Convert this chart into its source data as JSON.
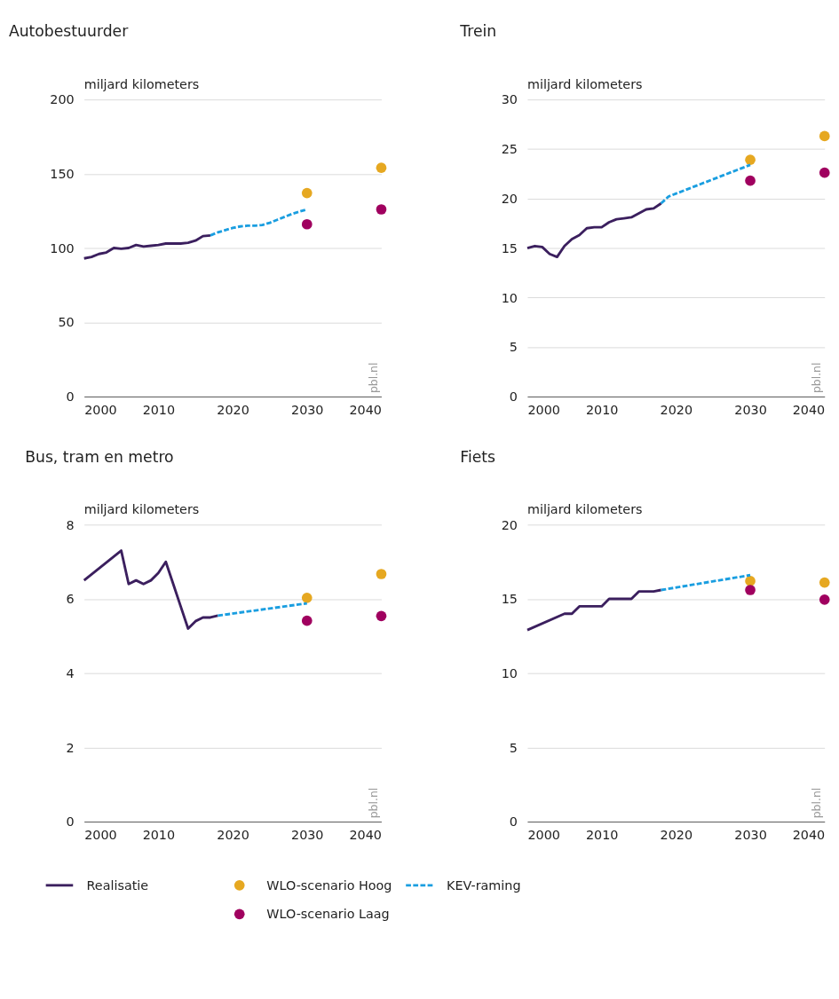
{
  "chart_data": [
    {
      "type": "line",
      "title": "Autobestuurder",
      "ylabel": "miljard kilometers",
      "xlim": [
        2000,
        2040
      ],
      "xticks": [
        2000,
        2010,
        2020,
        2030,
        2040
      ],
      "ylim": [
        0,
        200
      ],
      "yticks": [
        0,
        50,
        100,
        150,
        200
      ],
      "grid": "y",
      "annotations": [
        "pbl.nl"
      ],
      "legend": "bottom",
      "series": [
        {
          "name": "Realisatie",
          "type": "line",
          "color": "#3b1f5e",
          "line_style": "solid",
          "x": [
            2000,
            2001,
            2002,
            2003,
            2004,
            2005,
            2006,
            2007,
            2008,
            2009,
            2010,
            2011,
            2012,
            2013,
            2014,
            2015,
            2016,
            2017
          ],
          "values": [
            93,
            94,
            96,
            97,
            100,
            99.5,
            100,
            102,
            101,
            101.5,
            102,
            103,
            103,
            103,
            103.5,
            105,
            108,
            108.5
          ]
        },
        {
          "name": "WLO-scenario Hoog",
          "type": "scatter",
          "marker": "circle",
          "color": "#e6a821",
          "x": [
            2030,
            2040
          ],
          "values": [
            137,
            154
          ]
        },
        {
          "name": "KEV-raming",
          "type": "line",
          "color": "#1a9ee0",
          "line_style": "dashed",
          "x": [
            2017,
            2018,
            2019,
            2020,
            2021,
            2022,
            2023,
            2024,
            2025,
            2026,
            2027,
            2028,
            2029,
            2030
          ],
          "values": [
            108.5,
            110.5,
            112,
            113.5,
            114.5,
            115,
            115,
            115.5,
            117,
            119,
            121,
            123,
            124.5,
            126
          ]
        },
        {
          "name": "WLO-scenario Laag",
          "type": "scatter",
          "marker": "circle",
          "color": "#a0005f",
          "x": [
            2030,
            2040
          ],
          "values": [
            116,
            126
          ]
        }
      ]
    },
    {
      "type": "line",
      "title": "Trein",
      "ylabel": "miljard kilometers",
      "xlim": [
        2000,
        2040
      ],
      "xticks": [
        2000,
        2010,
        2020,
        2030,
        2040
      ],
      "ylim": [
        0,
        30
      ],
      "yticks": [
        0,
        5,
        10,
        15,
        20,
        25,
        30
      ],
      "grid": "y",
      "annotations": [
        "pbl.nl"
      ],
      "legend": "bottom",
      "series": [
        {
          "name": "Realisatie",
          "type": "line",
          "color": "#3b1f5e",
          "line_style": "solid",
          "x": [
            2000,
            2001,
            2002,
            2003,
            2004,
            2005,
            2006,
            2007,
            2008,
            2009,
            2010,
            2011,
            2012,
            2013,
            2014,
            2015,
            2016,
            2017,
            2018
          ],
          "values": [
            15.0,
            15.2,
            15.1,
            14.4,
            14.1,
            15.2,
            15.9,
            16.3,
            17.0,
            17.1,
            17.1,
            17.6,
            17.9,
            18.0,
            18.1,
            18.5,
            18.9,
            19.0,
            19.5
          ]
        },
        {
          "name": "WLO-scenario Hoog",
          "type": "scatter",
          "marker": "circle",
          "color": "#e6a821",
          "x": [
            2030,
            2040
          ],
          "values": [
            23.9,
            26.3
          ]
        },
        {
          "name": "KEV-raming",
          "type": "line",
          "color": "#1a9ee0",
          "line_style": "dashed",
          "x": [
            2018,
            2019,
            2030
          ],
          "values": [
            19.5,
            20.2,
            23.4
          ]
        },
        {
          "name": "WLO-scenario Laag",
          "type": "scatter",
          "marker": "circle",
          "color": "#a0005f",
          "x": [
            2030,
            2040
          ],
          "values": [
            21.8,
            22.6
          ]
        }
      ]
    },
    {
      "type": "line",
      "title": "Bus, tram en metro",
      "ylabel": "miljard kilometers",
      "xlim": [
        2000,
        2040
      ],
      "xticks": [
        2000,
        2010,
        2020,
        2030,
        2040
      ],
      "ylim": [
        0,
        8
      ],
      "yticks": [
        0,
        2,
        4,
        6,
        8
      ],
      "grid": "y",
      "annotations": [
        "pbl.nl"
      ],
      "legend": "bottom",
      "series": [
        {
          "name": "Realisatie",
          "type": "line",
          "color": "#3b1f5e",
          "line_style": "solid",
          "x": [
            2000,
            2005,
            2006,
            2007,
            2008,
            2009,
            2010,
            2011,
            2012,
            2013,
            2014,
            2015,
            2016,
            2017,
            2018
          ],
          "values": [
            6.5,
            7.3,
            6.4,
            6.5,
            6.4,
            6.5,
            6.7,
            7.0,
            6.4,
            5.8,
            5.2,
            5.4,
            5.5,
            5.5,
            5.55
          ]
        },
        {
          "name": "WLO-scenario Hoog",
          "type": "scatter",
          "marker": "circle",
          "color": "#e6a821",
          "x": [
            2030,
            2040
          ],
          "values": [
            6.03,
            6.67
          ]
        },
        {
          "name": "KEV-raming",
          "type": "line",
          "color": "#1a9ee0",
          "line_style": "dashed",
          "x": [
            2018,
            2030
          ],
          "values": [
            5.55,
            5.88
          ]
        },
        {
          "name": "WLO-scenario Laag",
          "type": "scatter",
          "marker": "circle",
          "color": "#a0005f",
          "x": [
            2030,
            2040
          ],
          "values": [
            5.41,
            5.54
          ]
        }
      ]
    },
    {
      "type": "line",
      "title": "Fiets",
      "ylabel": "miljard kilometers",
      "xlim": [
        2000,
        2040
      ],
      "xticks": [
        2000,
        2010,
        2020,
        2030,
        2040
      ],
      "ylim": [
        0,
        20
      ],
      "yticks": [
        0,
        5,
        10,
        15,
        20
      ],
      "grid": "y",
      "annotations": [
        "pbl.nl"
      ],
      "legend": "bottom",
      "series": [
        {
          "name": "Realisatie",
          "type": "line",
          "color": "#3b1f5e",
          "line_style": "solid",
          "x": [
            2000,
            2005,
            2006,
            2007,
            2010,
            2011,
            2014,
            2015,
            2017,
            2018
          ],
          "values": [
            12.9,
            14.0,
            14.0,
            14.5,
            14.5,
            15.0,
            15.0,
            15.5,
            15.5,
            15.6
          ]
        },
        {
          "name": "WLO-scenario Hoog",
          "type": "scatter",
          "marker": "circle",
          "color": "#e6a821",
          "x": [
            2030,
            2040
          ],
          "values": [
            16.2,
            16.1
          ]
        },
        {
          "name": "KEV-raming",
          "type": "line",
          "color": "#1a9ee0",
          "line_style": "dashed",
          "x": [
            2018,
            2030
          ],
          "values": [
            15.6,
            16.6
          ]
        },
        {
          "name": "WLO-scenario Laag",
          "type": "scatter",
          "marker": "circle",
          "color": "#a0005f",
          "x": [
            2030,
            2040
          ],
          "values": [
            15.6,
            14.95
          ]
        }
      ]
    }
  ]
}
